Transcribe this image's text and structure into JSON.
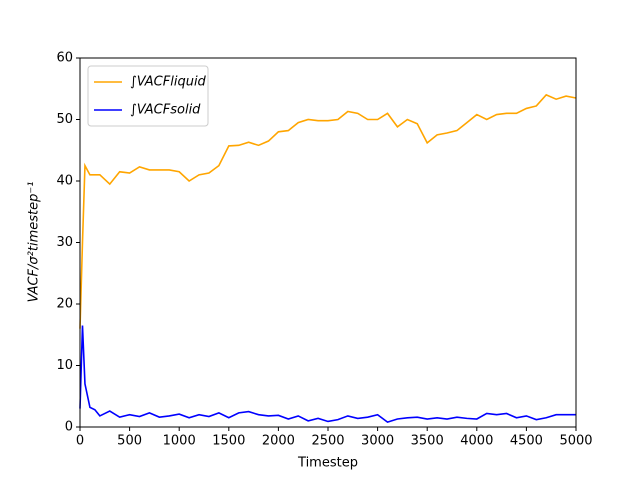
{
  "chart_data": {
    "type": "line",
    "x": [
      0,
      25,
      50,
      100,
      150,
      200,
      300,
      400,
      500,
      600,
      700,
      800,
      900,
      1000,
      1100,
      1200,
      1300,
      1400,
      1500,
      1600,
      1700,
      1800,
      1900,
      2000,
      2100,
      2200,
      2300,
      2400,
      2500,
      2600,
      2700,
      2800,
      2900,
      3000,
      3100,
      3200,
      3300,
      3400,
      3500,
      3600,
      3700,
      3800,
      3900,
      4000,
      4100,
      4200,
      4300,
      4400,
      4500,
      4600,
      4700,
      4800,
      4900,
      5000
    ],
    "series": [
      {
        "name": "∫VACFliquid",
        "color": "#ffa500",
        "values": [
          16,
          30,
          42.5,
          41,
          41,
          41,
          39.5,
          41.5,
          41.3,
          42.3,
          41.8,
          41.8,
          41.8,
          41.5,
          40,
          41,
          41.3,
          42.5,
          45.7,
          45.8,
          46.3,
          45.8,
          46.5,
          48,
          48.2,
          49.5,
          50,
          49.8,
          49.8,
          50,
          51.3,
          51,
          50,
          50,
          51,
          48.8,
          50,
          49.3,
          46.2,
          47.5,
          47.8,
          48.2,
          49.5,
          50.8,
          50,
          50.8,
          51,
          51,
          51.8,
          52.2,
          54,
          53.3,
          53.8,
          53.5
        ]
      },
      {
        "name": "∫VACFsolid",
        "color": "#0000ff",
        "values": [
          3,
          16.5,
          7,
          3.2,
          2.8,
          1.8,
          2.6,
          1.6,
          2,
          1.7,
          2.3,
          1.6,
          1.8,
          2.1,
          1.5,
          2,
          1.7,
          2.3,
          1.5,
          2.3,
          2.5,
          2,
          1.8,
          1.9,
          1.3,
          1.8,
          1,
          1.4,
          0.9,
          1.2,
          1.8,
          1.4,
          1.6,
          2,
          0.8,
          1.3,
          1.5,
          1.6,
          1.3,
          1.5,
          1.3,
          1.6,
          1.4,
          1.3,
          2.2,
          2,
          2.2,
          1.5,
          1.8,
          1.2,
          1.5,
          2,
          2,
          2
        ]
      }
    ],
    "xlabel": "Timestep",
    "ylabel": "VACF/σ²timestep⁻¹",
    "xlim": [
      0,
      5000
    ],
    "xticks": [
      0,
      500,
      1000,
      1500,
      2000,
      2500,
      3000,
      3500,
      4000,
      4500,
      5000
    ],
    "ylim": [
      0,
      60
    ],
    "yticks": [
      0,
      10,
      20,
      30,
      40,
      50,
      60
    ],
    "legend": "upper left"
  }
}
